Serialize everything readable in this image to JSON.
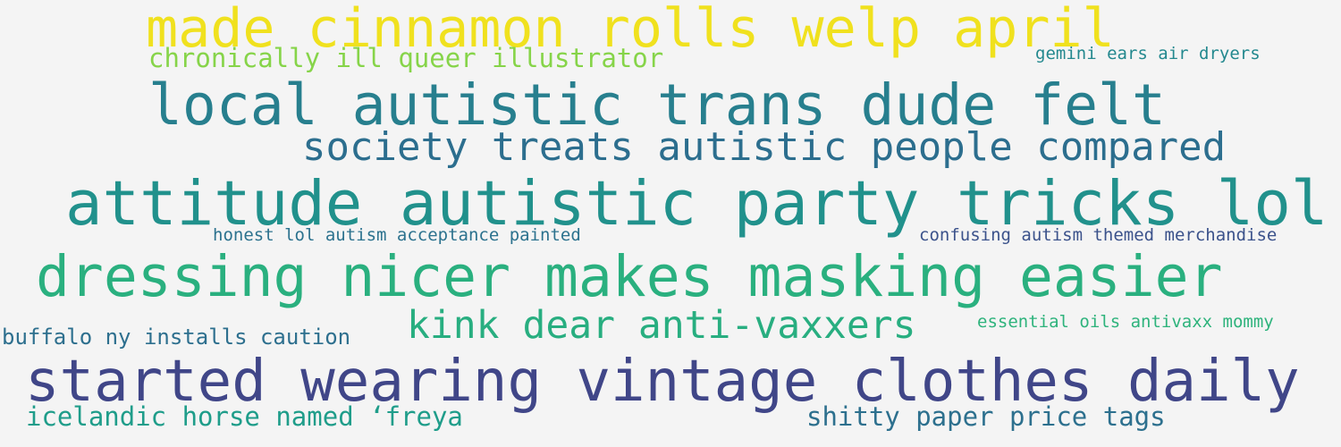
{
  "phrases": [
    {
      "text": "made cinnamon rolls welp april",
      "color": "#f0e11e"
    },
    {
      "text": "chronically ill queer illustrator",
      "color": "#86d449"
    },
    {
      "text": "gemini ears air dryers",
      "color": "#23888e"
    },
    {
      "text": "local autistic trans dude felt",
      "color": "#277f8e"
    },
    {
      "text": "society treats autistic people compared",
      "color": "#2c6e8e"
    },
    {
      "text": "attitude autistic party tricks lol",
      "color": "#21918c"
    },
    {
      "text": "honest lol autism acceptance painted",
      "color": "#2c728e"
    },
    {
      "text": "confusing autism themed merchandise",
      "color": "#3b528b"
    },
    {
      "text": "dressing nicer makes masking easier",
      "color": "#2ab07f"
    },
    {
      "text": "kink dear anti-vaxxers",
      "color": "#28ae80"
    },
    {
      "text": "essential oils antivaxx mommy",
      "color": "#2eb37c"
    },
    {
      "text": "buffalo ny installs caution",
      "color": "#2d6f8e"
    },
    {
      "text": "started wearing vintage clothes daily",
      "color": "#404688"
    },
    {
      "text": "icelandic horse named ‘freya",
      "color": "#1f9d8a"
    },
    {
      "text": "shitty paper price tags",
      "color": "#2d708e"
    }
  ]
}
